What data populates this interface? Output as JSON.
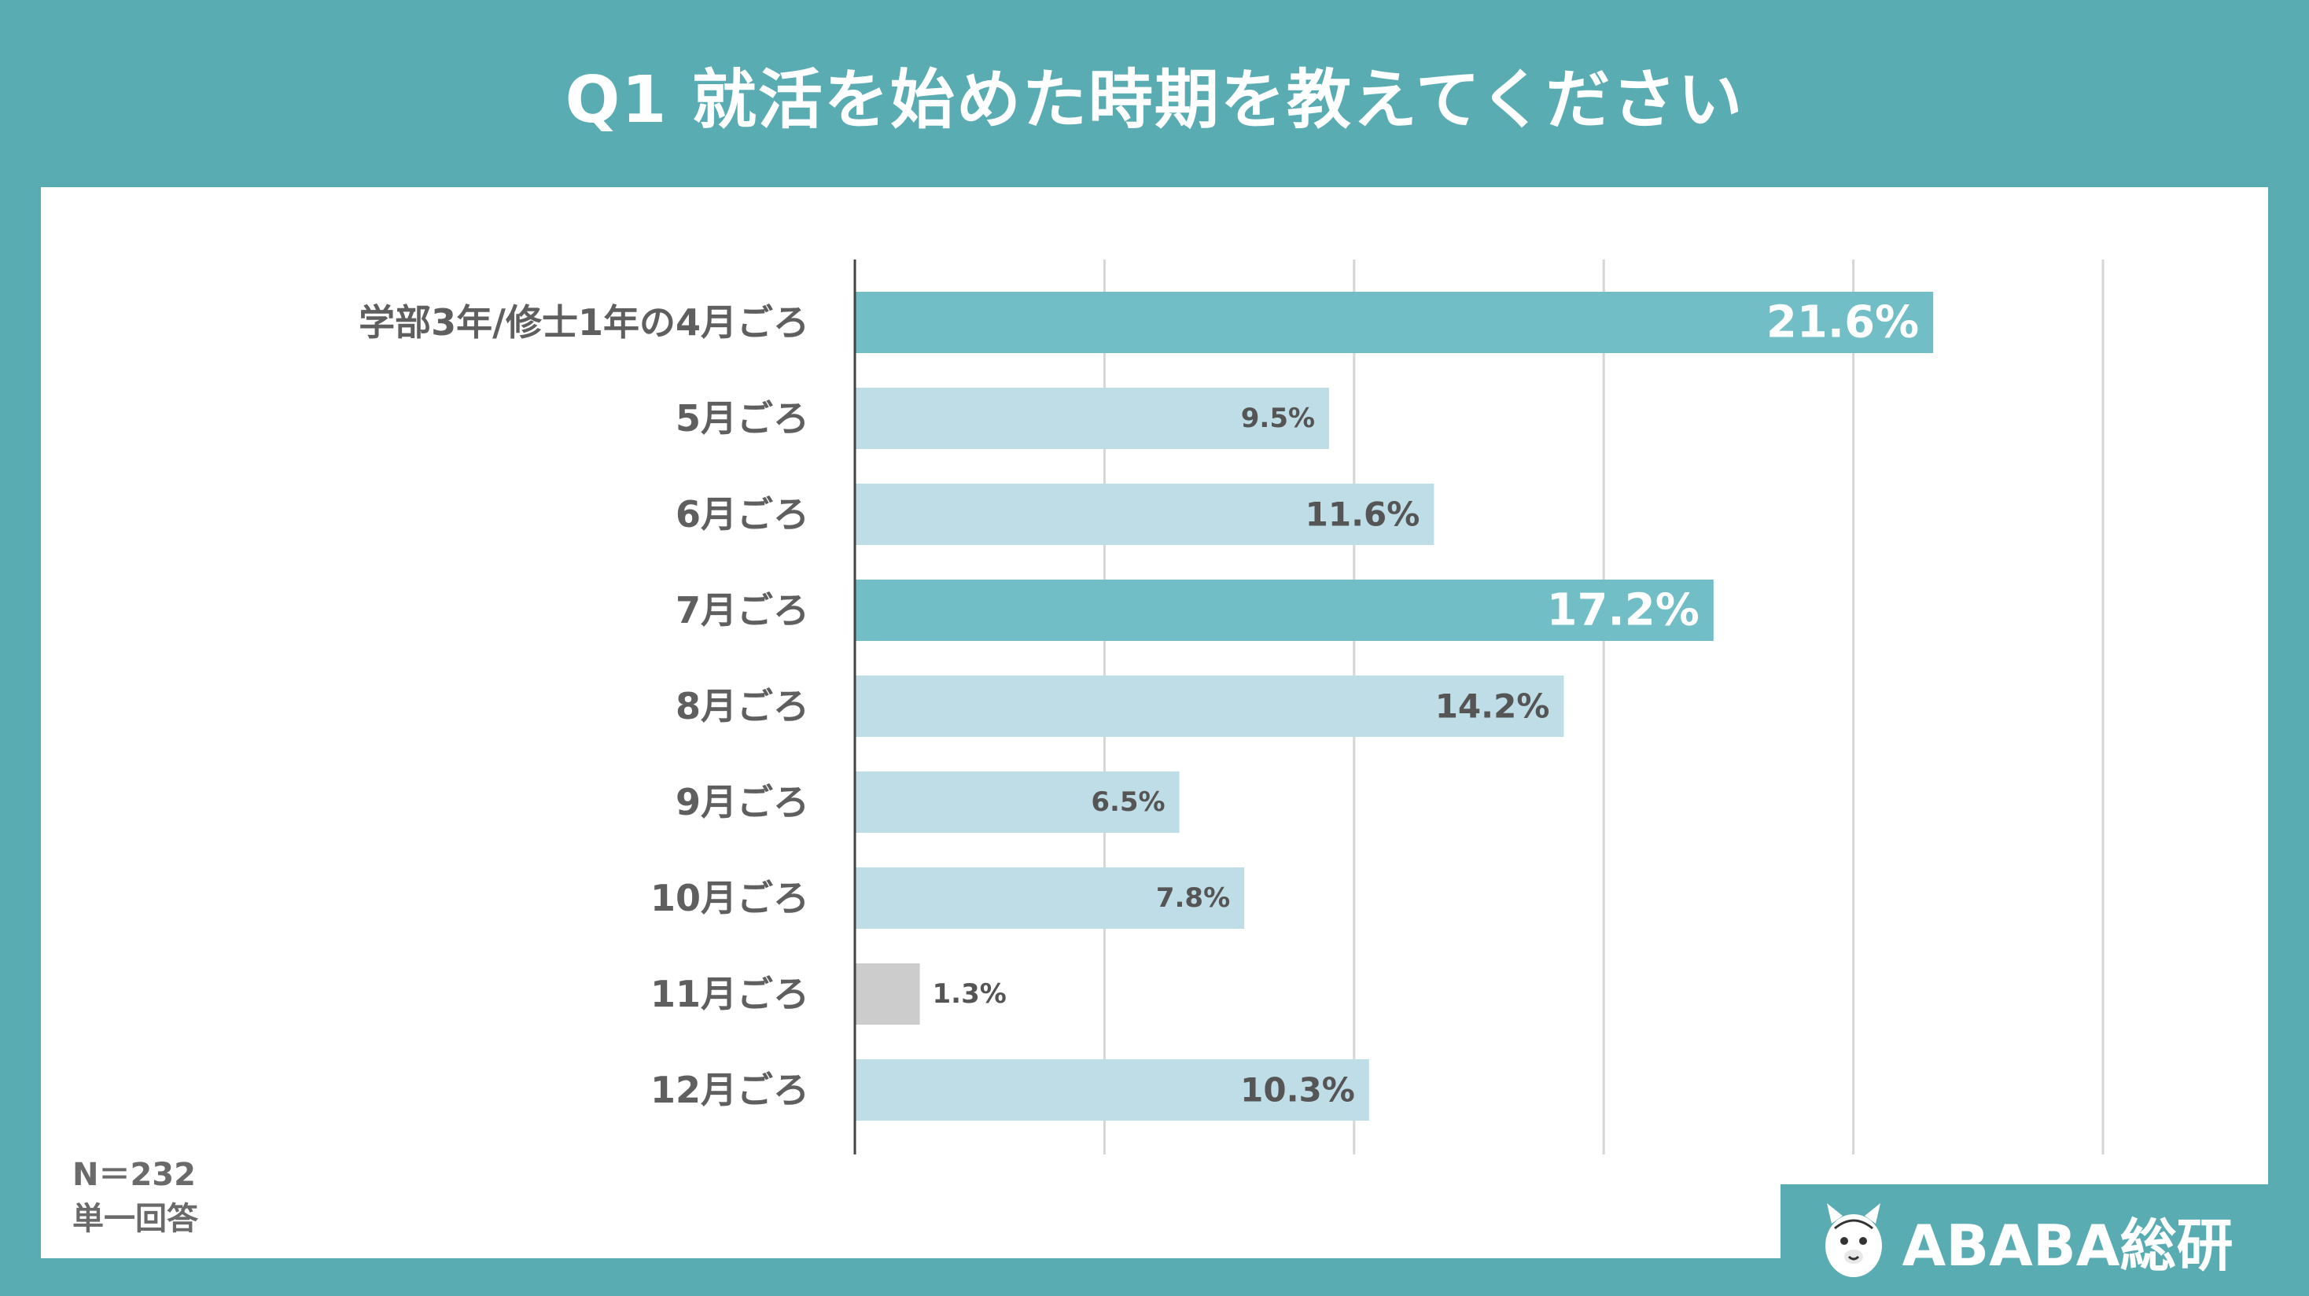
{
  "title": "Q1  就活を始めた時期を教えてください",
  "footnote": {
    "n": "N＝232",
    "type": "単一回答"
  },
  "brand": {
    "name": "ABABA総研",
    "icon": "alpaca-icon"
  },
  "colors": {
    "highlight": "#72bec7",
    "normal": "#bfdde6",
    "minor": "#cccccc",
    "label_dark": "#555555",
    "label_light": "#ffffff",
    "background": "#5aacb3"
  },
  "chart_data": {
    "type": "bar",
    "orientation": "horizontal",
    "categories": [
      "学部3年/修士1年の4月ごろ",
      "5月ごろ",
      "6月ごろ",
      "7月ごろ",
      "8月ごろ",
      "9月ごろ",
      "10月ごろ",
      "11月ごろ",
      "12月ごろ"
    ],
    "values": [
      21.6,
      9.5,
      11.6,
      17.2,
      14.2,
      6.5,
      7.8,
      1.3,
      10.3
    ],
    "value_labels": [
      "21.6%",
      "9.5%",
      "11.6%",
      "17.2%",
      "14.2%",
      "6.5%",
      "7.8%",
      "1.3%",
      "10.3%"
    ],
    "bar_styles": [
      "highlight",
      "normal",
      "normal",
      "highlight",
      "normal",
      "normal",
      "normal",
      "minor",
      "normal"
    ],
    "xlim": [
      0,
      25
    ],
    "grid": true,
    "unit": "%"
  }
}
